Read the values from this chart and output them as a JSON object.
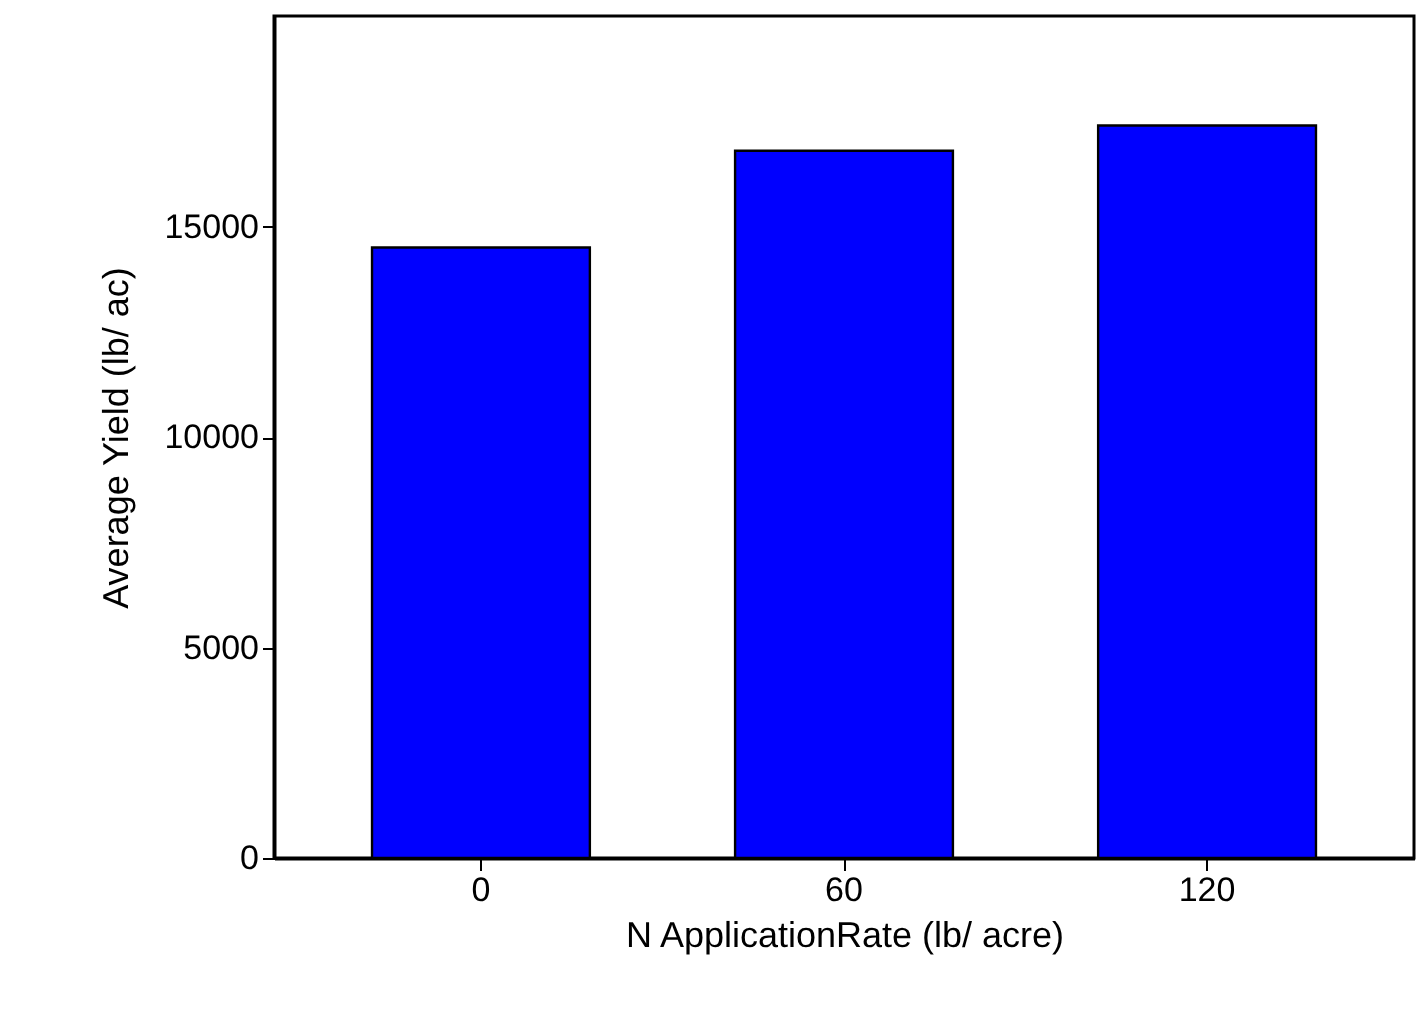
{
  "chart_data": {
    "type": "bar",
    "xlabel": "N ApplicationRate (lb/ acre)",
    "ylabel": "Average Yield (lb/ ac)",
    "categories": [
      "0",
      "60",
      "120"
    ],
    "values": [
      14500,
      16800,
      17400
    ],
    "color": "#0000ff",
    "ylim": [
      0,
      20000
    ],
    "yticks": [
      0,
      5000,
      10000,
      15000
    ],
    "grid": false
  }
}
